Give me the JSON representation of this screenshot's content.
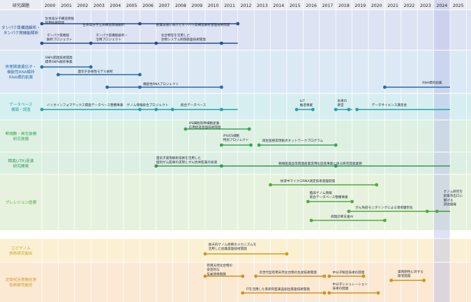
{
  "header": {
    "corner_label": "研究課題",
    "years": [
      "2000",
      "2001",
      "2002",
      "2003",
      "2004",
      "2005",
      "2006",
      "2007",
      "2008",
      "2009",
      "2010",
      "2011",
      "2012",
      "2013",
      "2014",
      "2015",
      "2016",
      "2017",
      "2018",
      "2019",
      "2020",
      "2021",
      "2022",
      "2023",
      "2024",
      "2025"
    ],
    "highlight_year": "2024"
  },
  "colors": {
    "protein": "#2a4c95",
    "disease": "#2a6bb0",
    "database": "#23a4a8",
    "regen": "#3aa552",
    "ltr": "#2e9a58",
    "precision": "#55a845",
    "epi": "#caa018",
    "natural": "#d4911c",
    "highlight": "#b8bde6"
  },
  "categories": [
    {
      "id": "protein",
      "lines": [
        "タンパク質構造解析・",
        "タンパク質機能解析"
      ],
      "bg": "#dde3f2"
    },
    {
      "id": "disease",
      "lines": [
        "疾患関連遺伝子・",
        "機能性RNA解析",
        "RNA標的創薬"
      ],
      "bg": "#dbe9f5"
    },
    {
      "id": "database",
      "lines": [
        "データベース",
        "構築・調査"
      ],
      "bg": "#d6eef0"
    },
    {
      "id": "regen",
      "lines": [
        "幹細胞・再生医療",
        "研究発展"
      ],
      "bg": "#ddf0e2"
    },
    {
      "id": "ltr",
      "lines": [
        "精度LITR)促進",
        "研究開発"
      ],
      "bg": "#dcefe2"
    },
    {
      "id": "precision",
      "lines": [
        "プレシジョン医療"
      ],
      "bg": "#e6f2dd"
    },
    {
      "id": "epi",
      "lines": [
        "エピゲノム",
        "技術研究組合"
      ],
      "bg": "#fbf0d4"
    },
    {
      "id": "natural",
      "lines": [
        "次世代天然物化学",
        "技術研究組合"
      ],
      "bg": "#fbe9d3"
    }
  ],
  "timeline": [
    {
      "cat": "protein",
      "y": 34,
      "start": 2000,
      "end": 2012,
      "nodes": [
        2000,
        2006,
        2012
      ],
      "labels": [
        {
          "lines": [
            "生体高分子構造情報",
            "利用技術開発"
          ],
          "x": 2000.2,
          "y": 28
        },
        {
          "lines": [
            "生体高分子立体構造情報解析"
          ],
          "x": 2002.5,
          "y": 37
        },
        {
          "lines": [
            "創薬加速に向けたタンパク質構造解析基盤技術開発"
          ],
          "x": 2007.0,
          "y": 37
        }
      ]
    },
    {
      "cat": "protein",
      "y": 62,
      "start": 2000,
      "end": 2012,
      "nodes": [
        2000,
        2003,
        2007,
        2011
      ],
      "labels": [
        {
          "lines": [
            "タンパク質機能",
            "解析プロジェクト"
          ],
          "x": 2000.3,
          "y": 52
        },
        {
          "lines": [
            "タンパク質機能解析・",
            "活用プロジェクト"
          ],
          "x": 2003.3,
          "y": 52
        },
        {
          "lines": [
            "化合物等を活用した",
            "生物システム制御基盤技術開発"
          ],
          "x": 2007.3,
          "y": 52
        }
      ]
    },
    {
      "cat": "disease",
      "y": 96,
      "start": 2000,
      "end": 2003,
      "nodes": [
        2000,
        2003
      ],
      "labels": [
        {
          "lines": [
            "SNPs関連技術開発",
            "標準SNPs解析事業"
          ],
          "x": 2000.2,
          "y": 84
        }
      ]
    },
    {
      "cat": "disease",
      "y": 107,
      "start": 2001,
      "end": 2006,
      "nodes": [
        2001,
        2006
      ],
      "labels": [
        {
          "lines": [
            "遺伝子多様性モデル解析"
          ],
          "x": 2002.2,
          "y": 104
        }
      ]
    },
    {
      "cat": "disease",
      "y": 125,
      "start": 2004,
      "end": 2011,
      "nodes": [
        2004,
        2006,
        2011
      ],
      "labels": [
        {
          "lines": [
            "機能性RNAプロジェクト"
          ],
          "x": 2006.2,
          "y": 122
        }
      ]
    },
    {
      "cat": "disease",
      "y": 125,
      "start": 2021,
      "end": 2025,
      "nodes": [
        2021
      ],
      "labels": [
        {
          "lines": [
            "RNA標的創薬"
          ],
          "x": 2023.3,
          "y": 120
        }
      ]
    },
    {
      "cat": "database",
      "y": 157,
      "start": 2000,
      "end": 2012,
      "nodes": [
        2000,
        2006,
        2007,
        2008,
        2011
      ],
      "labels": [
        {
          "lines": [
            "バイオインフォマティクス関連データベース整備事業"
          ],
          "x": 2000.3,
          "y": 152
        },
        {
          "lines": [
            "ゲノム情報統合プロジェクト"
          ],
          "x": 2005.2,
          "y": 152
        },
        {
          "lines": [
            "統合データベース"
          ],
          "x": 2008.5,
          "y": 152
        }
      ]
    },
    {
      "cat": "database",
      "y": 157,
      "start": 2015.6,
      "end": 2016.6,
      "nodes": [
        2015.6,
        2016.6
      ],
      "labels": [
        {
          "lines": [
            "IoT",
            "推進事業"
          ],
          "x": 2015.8,
          "y": 146
        }
      ]
    },
    {
      "cat": "database",
      "y": 157,
      "start": 2018,
      "end": 2019,
      "nodes": [
        2018,
        2018.8
      ],
      "labels": [
        {
          "lines": [
            "未来の",
            "教室"
          ],
          "x": 2018.1,
          "y": 146
        }
      ]
    },
    {
      "cat": "database",
      "y": 157,
      "start": 2019.3,
      "end": 2025,
      "nodes": [
        2019.3
      ],
      "labels": [
        {
          "lines": [
            "データサイエンス講習会"
          ],
          "x": 2020.2,
          "y": 152
        }
      ]
    },
    {
      "cat": "regen",
      "y": 185,
      "start": 2008.8,
      "end": 2012.7,
      "nodes": [
        2008.8,
        2012.7
      ],
      "labels": [
        {
          "lines": [
            "iPS細胞等幹細胞産業",
            "応用促進基盤技術開発"
          ],
          "x": 2009.0,
          "y": 178
        }
      ]
    },
    {
      "cat": "regen",
      "y": 208,
      "start": 2011,
      "end": 2012.8,
      "nodes": [
        2011,
        2012.8
      ],
      "labels": [
        {
          "lines": [
            "iPS/ES細胞",
            "特別プロジェクト"
          ],
          "x": 2011.1,
          "y": 196
        }
      ]
    },
    {
      "cat": "regen",
      "y": 208,
      "start": 2013.3,
      "end": 2018,
      "nodes": [
        2013.3,
        2018
      ],
      "labels": [
        {
          "lines": [
            "再生医療実現拠点ネットワークプログラム"
          ],
          "x": 2013.5,
          "y": 203
        }
      ]
    },
    {
      "cat": "ltr",
      "y": 238,
      "start": 2007,
      "end": 2025,
      "nodes": [
        2007,
        2011,
        2018
      ],
      "labels": [
        {
          "lines": [
            "遺伝子発現解析技術を活用した",
            "個別がん医療の実現とがん抗体医薬の加速"
          ],
          "x": 2007.0,
          "y": 228
        },
        {
          "lines": [
            "精緻医薬品等関連産業実用化促進事業に係る研究開発業務"
          ],
          "x": 2014.5,
          "y": 236
        }
      ]
    },
    {
      "cat": "precision",
      "y": 265,
      "start": 2014,
      "end": 2020.5,
      "nodes": [
        2014,
        2020.5
      ],
      "labels": [
        {
          "lines": [
            "体液中マイクロRNA測定技術基盤開発"
          ],
          "x": 2014.6,
          "y": 261
        }
      ]
    },
    {
      "cat": "precision",
      "y": 289,
      "start": 2016.3,
      "end": 2019,
      "nodes": [
        2016.3,
        2019
      ],
      "labels": [
        {
          "lines": [
            "臨床ゲノム情報",
            "統合データベース整備事業"
          ],
          "x": 2016.4,
          "y": 278
        }
      ]
    },
    {
      "cat": "precision",
      "y": 303,
      "start": 2018.8,
      "end": 2025,
      "nodes": [
        2018.8,
        2023.6
      ],
      "labels": [
        {
          "lines": [
            "がん免疫モニタリングによる患者層別化"
          ],
          "x": 2019.2,
          "y": 299
        }
      ]
    },
    {
      "cat": "precision",
      "y": 303,
      "start": 2024.2,
      "end": 2025,
      "nodes": [
        2024.2
      ],
      "labels": [
        {
          "lines": [
            "ゲノム研究を",
            "創薬等出口に",
            "繋げる",
            "研究開発"
          ],
          "x": 2024.6,
          "y": 276
        }
      ]
    },
    {
      "cat": "precision",
      "y": 316,
      "start": 2016.5,
      "end": 2021,
      "nodes": [
        2016.5,
        2021
      ],
      "labels": [
        {
          "lines": [
            "病理診断支援AI"
          ],
          "x": 2017.7,
          "y": 312
        }
      ]
    },
    {
      "cat": "epi",
      "y": 364,
      "start": 2010,
      "end": 2015,
      "nodes": [
        2010,
        2015
      ],
      "labels": [
        {
          "lines": [
            "後天的ゲノム修飾のメカニズムを",
            "活用した創薬基盤技術開発"
          ],
          "x": 2010.2,
          "y": 352
        }
      ]
    },
    {
      "cat": "natural",
      "y": 396,
      "start": 2010,
      "end": 2012.3,
      "nodes": [
        2010,
        2012.3
      ],
      "labels": [
        {
          "lines": [
            "有用天然化合物の",
            "安定的な",
            "生産技術開発"
          ],
          "x": 2010.1,
          "y": 382
        }
      ]
    },
    {
      "cat": "natural",
      "y": 396,
      "start": 2013.1,
      "end": 2017.3,
      "nodes": [
        2013.1,
        2017.3
      ],
      "labels": [
        {
          "lines": [
            "次世代型有用天然化合物の生産技術開発"
          ],
          "x": 2013.3,
          "y": 392
        }
      ]
    },
    {
      "cat": "natural",
      "y": 396,
      "start": 2017.6,
      "end": 2019.7,
      "nodes": [
        2017.6,
        2019.7
      ],
      "labels": [
        {
          "lines": [
            "中分子製造技術の開発"
          ],
          "x": 2017.8,
          "y": 392
        }
      ]
    },
    {
      "cat": "natural",
      "y": 402,
      "start": 2021.4,
      "end": 2023.4,
      "nodes": [
        2021.4,
        2023.4
      ],
      "labels": [
        {
          "lines": [
            "薬剤耐性に対する",
            "研究開発"
          ],
          "x": 2021.8,
          "y": 391
        }
      ]
    },
    {
      "cat": "natural",
      "y": 420,
      "start": 2012.3,
      "end": 2017.3,
      "nodes": [
        2012.3,
        2017.3
      ],
      "labels": [
        {
          "lines": [
            "ITを活用した革新的医薬品創出基盤技術開発"
          ],
          "x": 2012.5,
          "y": 416
        }
      ]
    },
    {
      "cat": "natural",
      "y": 420,
      "start": 2017.6,
      "end": 2020.6,
      "nodes": [
        2017.6,
        2020.6
      ],
      "labels": [
        {
          "lines": [
            "中分子シミュレーション",
            "技術の開発"
          ],
          "x": 2017.8,
          "y": 409
        }
      ]
    }
  ]
}
